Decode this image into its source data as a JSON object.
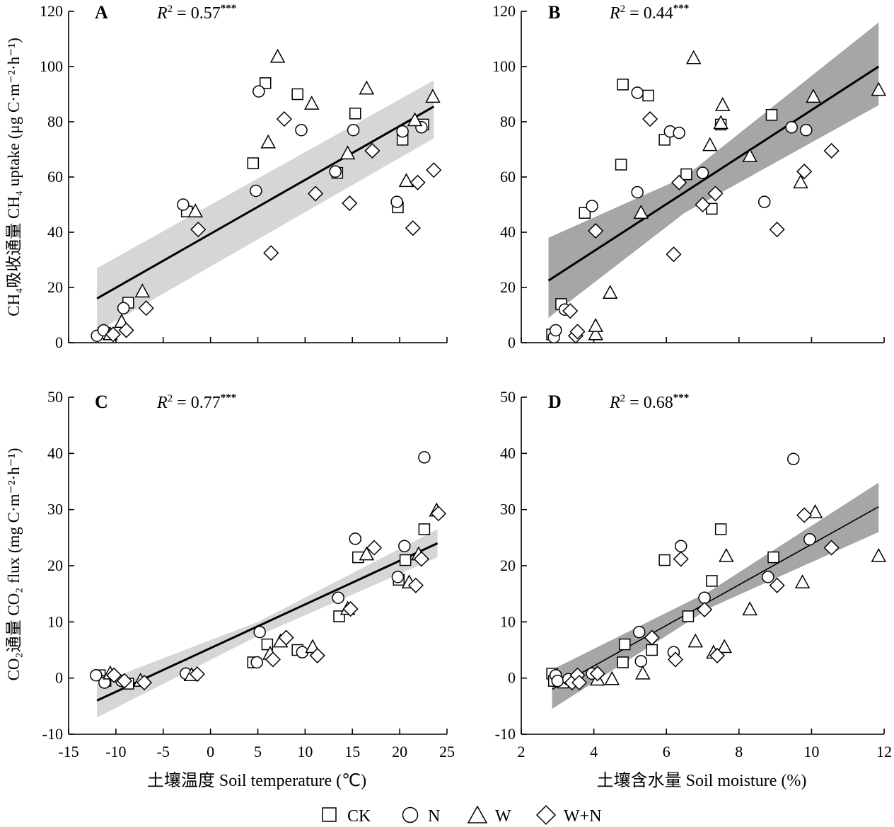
{
  "chart_data": [
    {
      "type": "scatter",
      "panel": "A",
      "annotation": {
        "r2_label": "R",
        "r2_power": "2",
        "r2_value": " = 0.57",
        "r2_sig": "***"
      },
      "xlim": [
        -15,
        25
      ],
      "ylim": [
        0,
        120
      ],
      "xticks": [
        -15,
        -10,
        -5,
        0,
        5,
        10,
        15,
        20,
        25
      ],
      "yticks": [
        0,
        20,
        40,
        60,
        80,
        100,
        120
      ],
      "series": [
        {
          "name": "CK",
          "points": [
            [
              -11.3,
              3.5
            ],
            [
              -8.7,
              14.5
            ],
            [
              -2.5,
              47.5
            ],
            [
              4.5,
              65
            ],
            [
              5.8,
              94
            ],
            [
              9.2,
              90
            ],
            [
              13.4,
              61.5
            ],
            [
              15.3,
              83
            ],
            [
              19.8,
              49
            ],
            [
              20.3,
              73.5
            ],
            [
              22.5,
              79
            ]
          ]
        },
        {
          "name": "N",
          "points": [
            [
              -12,
              2.5
            ],
            [
              -11.3,
              4.5
            ],
            [
              -9.2,
              12.5
            ],
            [
              -2.9,
              50
            ],
            [
              4.8,
              55
            ],
            [
              5.1,
              91
            ],
            [
              9.6,
              77
            ],
            [
              13.2,
              62
            ],
            [
              15.1,
              77
            ],
            [
              19.7,
              51
            ],
            [
              20.3,
              76.5
            ],
            [
              22.3,
              78
            ]
          ]
        },
        {
          "name": "W",
          "points": [
            [
              -10.6,
              3
            ],
            [
              -9.4,
              7.5
            ],
            [
              -7.2,
              18.5
            ],
            [
              -1.6,
              47.5
            ],
            [
              6.1,
              72.5
            ],
            [
              7.1,
              103.5
            ],
            [
              10.7,
              86.5
            ],
            [
              14.5,
              68.5
            ],
            [
              16.5,
              92
            ],
            [
              20.7,
              58.5
            ],
            [
              21.6,
              80.5
            ],
            [
              23.5,
              89
            ]
          ]
        },
        {
          "name": "W+N",
          "points": [
            [
              -10.3,
              3
            ],
            [
              -8.9,
              4.5
            ],
            [
              -6.8,
              12.5
            ],
            [
              -1.3,
              41
            ],
            [
              6.4,
              32.5
            ],
            [
              7.8,
              81
            ],
            [
              11.1,
              54
            ],
            [
              14.7,
              50.5
            ],
            [
              17.1,
              69.5
            ],
            [
              21.4,
              41.5
            ],
            [
              21.9,
              58
            ],
            [
              23.6,
              62.5
            ]
          ]
        }
      ],
      "fit": {
        "x": [
          -12,
          23.6
        ],
        "y": [
          16,
          85.5
        ]
      },
      "band": {
        "x": [
          -12,
          23.6
        ],
        "upper": [
          27,
          95
        ],
        "lower": [
          4,
          74
        ]
      }
    },
    {
      "type": "scatter",
      "panel": "B",
      "annotation": {
        "r2_label": "R",
        "r2_power": "2",
        "r2_value": " = 0.44",
        "r2_sig": "***"
      },
      "xlim": [
        2,
        12
      ],
      "ylim": [
        0,
        120
      ],
      "xticks": [
        2,
        4,
        6,
        8,
        10,
        12
      ],
      "yticks": [
        0,
        20,
        40,
        60,
        80,
        100,
        120
      ],
      "series": [
        {
          "name": "CK",
          "points": [
            [
              2.85,
              3
            ],
            [
              3.1,
              14
            ],
            [
              3.75,
              47
            ],
            [
              4.75,
              64.5
            ],
            [
              4.8,
              93.5
            ],
            [
              5.5,
              89.5
            ],
            [
              5.95,
              73.5
            ],
            [
              6.55,
              61
            ],
            [
              7.25,
              48.5
            ],
            [
              7.5,
              79
            ],
            [
              8.9,
              82.5
            ]
          ]
        },
        {
          "name": "N",
          "points": [
            [
              2.9,
              2
            ],
            [
              2.95,
              4.5
            ],
            [
              3.2,
              12
            ],
            [
              3.95,
              49.5
            ],
            [
              5.2,
              54.5
            ],
            [
              5.2,
              90.5
            ],
            [
              6.1,
              76.5
            ],
            [
              6.35,
              76
            ],
            [
              7.0,
              61.5
            ],
            [
              8.7,
              51
            ],
            [
              9.45,
              78
            ],
            [
              9.85,
              77
            ]
          ]
        },
        {
          "name": "W",
          "points": [
            [
              4.05,
              3
            ],
            [
              4.05,
              6
            ],
            [
              4.45,
              18
            ],
            [
              5.3,
              47
            ],
            [
              6.75,
              103
            ],
            [
              7.2,
              71.5
            ],
            [
              7.5,
              79.5
            ],
            [
              7.55,
              86
            ],
            [
              8.3,
              67.5
            ],
            [
              9.7,
              58
            ],
            [
              10.05,
              89
            ],
            [
              11.85,
              91.5
            ]
          ]
        },
        {
          "name": "W+N",
          "points": [
            [
              3.35,
              11.5
            ],
            [
              3.5,
              2.5
            ],
            [
              3.55,
              4
            ],
            [
              4.05,
              40.5
            ],
            [
              5.55,
              81
            ],
            [
              6.2,
              32
            ],
            [
              6.35,
              58
            ],
            [
              7.0,
              50
            ],
            [
              7.35,
              54
            ],
            [
              9.05,
              41
            ],
            [
              9.8,
              62
            ],
            [
              10.55,
              69.5
            ]
          ]
        }
      ],
      "fit": {
        "x": [
          2.75,
          11.85
        ],
        "y": [
          22.5,
          100
        ]
      },
      "band": {
        "x": [
          2.75,
          6.5,
          11.85
        ],
        "upper": [
          38,
          60,
          116
        ],
        "lower": [
          9,
          47,
          86
        ]
      }
    },
    {
      "type": "scatter",
      "panel": "C",
      "annotation": {
        "r2_label": "R",
        "r2_power": "2",
        "r2_value": " = 0.77",
        "r2_sig": "***"
      },
      "xlim": [
        -15,
        25
      ],
      "ylim": [
        -10,
        50
      ],
      "xticks": [
        -15,
        -10,
        -5,
        0,
        5,
        10,
        15,
        20,
        25
      ],
      "yticks": [
        -10,
        0,
        10,
        20,
        30,
        40,
        50
      ],
      "series": [
        {
          "name": "CK",
          "points": [
            [
              -11.7,
              0.5
            ],
            [
              -11.1,
              -0.5
            ],
            [
              -8.7,
              -1
            ],
            [
              -2.2,
              0.5
            ],
            [
              4.5,
              2.8
            ],
            [
              6.0,
              6
            ],
            [
              9.2,
              5
            ],
            [
              13.6,
              11
            ],
            [
              15.6,
              21.5
            ],
            [
              19.9,
              17.5
            ],
            [
              20.6,
              21
            ],
            [
              22.6,
              26.5
            ]
          ]
        },
        {
          "name": "N",
          "points": [
            [
              -12.1,
              0.5
            ],
            [
              -11.2,
              -0.8
            ],
            [
              -9.4,
              -0.5
            ],
            [
              -2.6,
              0.8
            ],
            [
              4.9,
              2.8
            ],
            [
              5.2,
              8.2
            ],
            [
              9.7,
              4.6
            ],
            [
              13.5,
              14.3
            ],
            [
              15.3,
              24.8
            ],
            [
              19.8,
              18
            ],
            [
              20.5,
              23.5
            ],
            [
              22.6,
              39.3
            ]
          ]
        },
        {
          "name": "W",
          "points": [
            [
              -10.6,
              0.8
            ],
            [
              -7.4,
              -0.5
            ],
            [
              -2.0,
              0.5
            ],
            [
              6.3,
              4.3
            ],
            [
              7.4,
              6.5
            ],
            [
              10.8,
              5.5
            ],
            [
              14.5,
              12.3
            ],
            [
              16.5,
              22
            ],
            [
              21.0,
              17
            ],
            [
              22.0,
              22
            ],
            [
              23.9,
              29.8
            ]
          ]
        },
        {
          "name": "W+N",
          "points": [
            [
              -10.2,
              0.5
            ],
            [
              -9.1,
              -0.5
            ],
            [
              -7.0,
              -0.8
            ],
            [
              -1.4,
              0.7
            ],
            [
              6.6,
              3.3
            ],
            [
              8.0,
              7.2
            ],
            [
              11.3,
              4
            ],
            [
              14.8,
              12.3
            ],
            [
              17.3,
              23.2
            ],
            [
              21.7,
              16.5
            ],
            [
              22.3,
              21.2
            ],
            [
              24.1,
              29.3
            ]
          ]
        }
      ],
      "fit": {
        "x": [
          -12,
          24
        ],
        "y": [
          -4,
          24
        ]
      },
      "band": {
        "x": [
          -12,
          5,
          24
        ],
        "upper": [
          -1,
          10,
          26.5
        ],
        "lower": [
          -7,
          7.5,
          21.5
        ]
      }
    },
    {
      "type": "scatter",
      "panel": "D",
      "annotation": {
        "r2_label": "R",
        "r2_power": "2",
        "r2_value": " = 0.68",
        "r2_sig": "***"
      },
      "xlim": [
        2,
        12
      ],
      "ylim": [
        -10,
        50
      ],
      "xticks": [
        2,
        4,
        6,
        8,
        10,
        12
      ],
      "yticks": [
        -10,
        0,
        10,
        20,
        30,
        40,
        50
      ],
      "series": [
        {
          "name": "CK",
          "points": [
            [
              2.85,
              0.8
            ],
            [
              2.9,
              -0.5
            ],
            [
              3.15,
              -0.8
            ],
            [
              4.8,
              2.8
            ],
            [
              4.85,
              6
            ],
            [
              5.6,
              5
            ],
            [
              5.95,
              21
            ],
            [
              6.6,
              11
            ],
            [
              7.25,
              17.3
            ],
            [
              7.5,
              26.5
            ],
            [
              8.95,
              21.5
            ]
          ]
        },
        {
          "name": "N",
          "points": [
            [
              2.95,
              0.5
            ],
            [
              3.0,
              -0.5
            ],
            [
              3.3,
              -0.2
            ],
            [
              3.95,
              0.8
            ],
            [
              5.25,
              8.2
            ],
            [
              5.3,
              3
            ],
            [
              6.2,
              4.6
            ],
            [
              6.4,
              23.5
            ],
            [
              7.05,
              14.3
            ],
            [
              8.8,
              18
            ],
            [
              9.5,
              39
            ],
            [
              9.95,
              24.7
            ]
          ]
        },
        {
          "name": "W",
          "points": [
            [
              4.1,
              -0.3
            ],
            [
              4.5,
              -0.2
            ],
            [
              5.35,
              0.8
            ],
            [
              6.8,
              6.5
            ],
            [
              7.3,
              4.5
            ],
            [
              7.6,
              5.5
            ],
            [
              7.65,
              21.7
            ],
            [
              8.3,
              12.2
            ],
            [
              9.75,
              17
            ],
            [
              10.1,
              29.5
            ],
            [
              11.85,
              21.7
            ]
          ]
        },
        {
          "name": "W+N",
          "points": [
            [
              3.4,
              -0.8
            ],
            [
              3.55,
              0.5
            ],
            [
              3.6,
              -0.8
            ],
            [
              4.1,
              0.8
            ],
            [
              5.6,
              7.2
            ],
            [
              6.25,
              3.3
            ],
            [
              6.4,
              21.2
            ],
            [
              7.05,
              12.2
            ],
            [
              7.4,
              4
            ],
            [
              9.05,
              16.5
            ],
            [
              9.8,
              29
            ],
            [
              10.55,
              23.2
            ]
          ]
        }
      ],
      "fit": {
        "x": [
          2.85,
          11.85
        ],
        "y": [
          -2,
          30.5
        ]
      },
      "band": {
        "x": [
          2.85,
          7.2,
          11.85
        ],
        "upper": [
          1.5,
          15.5,
          34.8
        ],
        "lower": [
          -5.5,
          12.5,
          26
        ]
      }
    }
  ],
  "axis_labels": {
    "y_top": "CH₄吸收通量 CH₄ uptake (μg C·m⁻²·h⁻¹)",
    "y_bottom": "CO₂通量 CO₂ flux (mg C·m⁻²·h⁻¹)",
    "x_left": "土壤温度 Soil temperature (℃)",
    "x_right": "土壤含水量 Soil moisture (%)"
  },
  "legend": {
    "items": [
      {
        "label": "CK",
        "marker": "square"
      },
      {
        "label": "N",
        "marker": "circle"
      },
      {
        "label": "W",
        "marker": "triangle"
      },
      {
        "label": "W+N",
        "marker": "diamond"
      }
    ]
  },
  "colors": {
    "marker_fill": "#ffffff",
    "marker_stroke": "#000000",
    "band_light": "#d6d6d6",
    "band_dark": "#a6a6a6",
    "line": "#000000"
  }
}
